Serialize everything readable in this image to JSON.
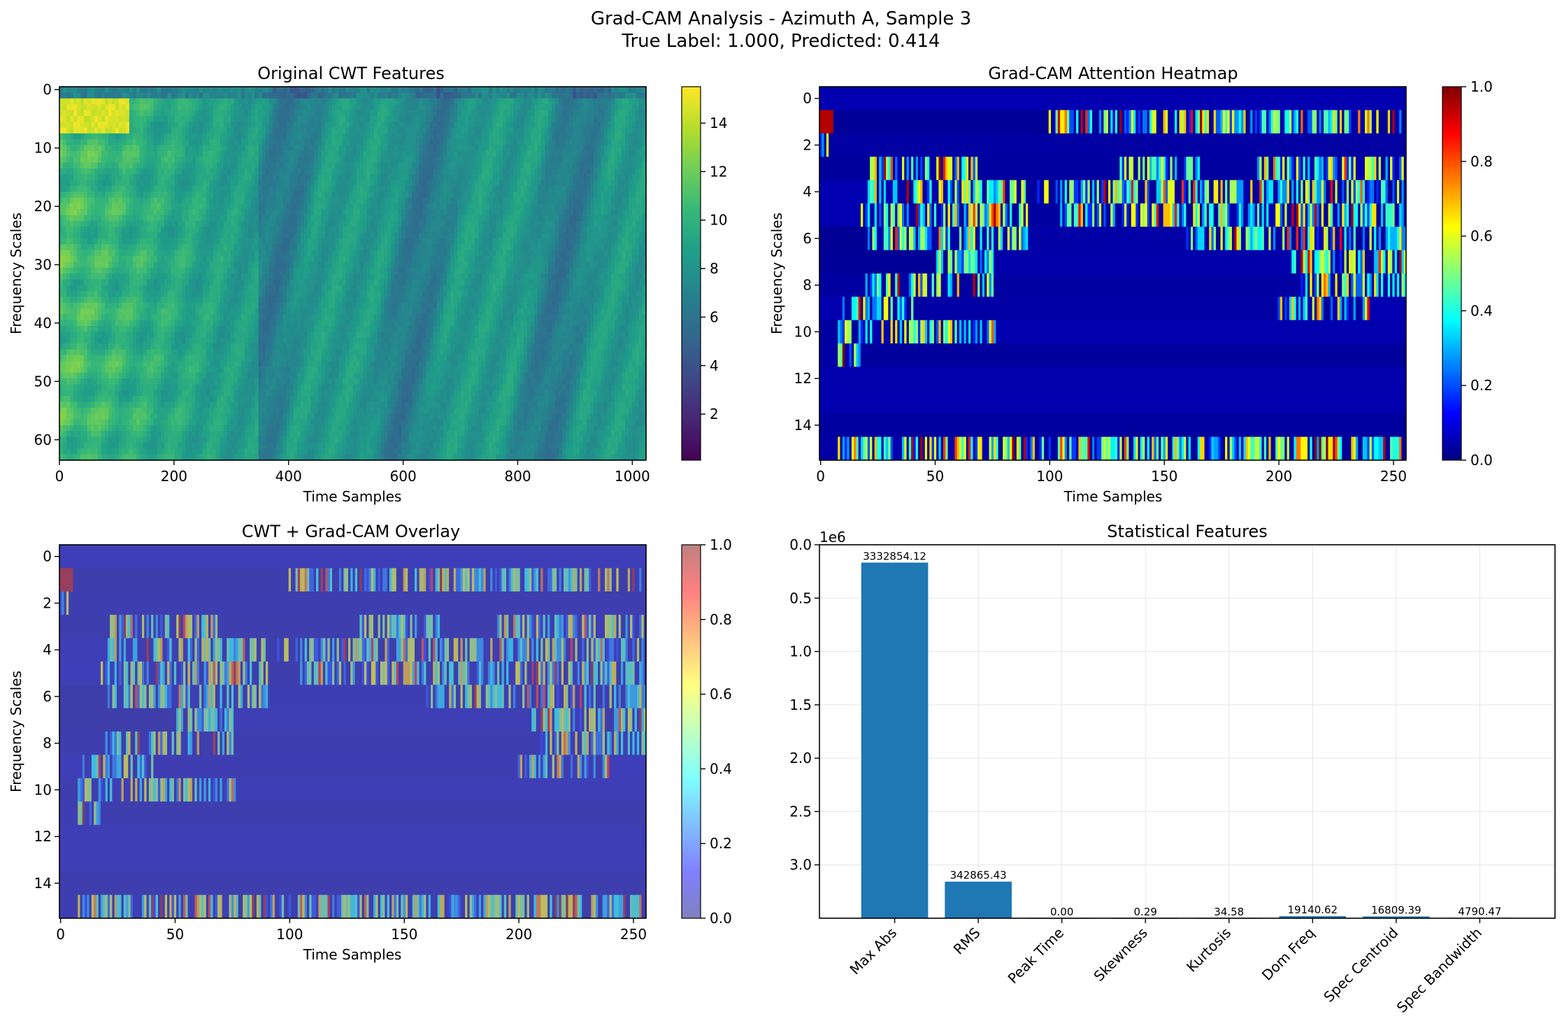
{
  "suptitle": {
    "line1": "Grad-CAM Analysis - Azimuth A, Sample 3",
    "line2": "True Label: 1.000, Predicted: 0.414"
  },
  "colors": {
    "viridis": [
      "#440154",
      "#482777",
      "#3e4989",
      "#31688e",
      "#26828e",
      "#1f9e89",
      "#35b779",
      "#6ece58",
      "#b5de2b",
      "#fde725"
    ],
    "jet": [
      "#00007f",
      "#0000ff",
      "#007fff",
      "#00ffff",
      "#7fff7f",
      "#ffff00",
      "#ff7f00",
      "#ff0000",
      "#7f0000"
    ],
    "bar": "#1f77b4",
    "overlay_base": "#7b7bbe"
  },
  "chart_data": [
    {
      "type": "heatmap",
      "title": "Original CWT Features",
      "xlabel": "Time Samples",
      "ylabel": "Frequency Scales",
      "xlim": [
        0,
        1024
      ],
      "ylim": [
        63.5,
        -0.5
      ],
      "x_ticks": [
        "0",
        "200",
        "400",
        "600",
        "800",
        "1000"
      ],
      "y_ticks": [
        "0",
        "10",
        "20",
        "30",
        "40",
        "50",
        "60"
      ],
      "colormap": "viridis",
      "colorbar": {
        "range": [
          0.1,
          15.5
        ],
        "ticks": [
          "2",
          "4",
          "6",
          "8",
          "10",
          "12",
          "14"
        ]
      },
      "grid": false,
      "features": {
        "bright_band_scales": [
          2,
          7
        ],
        "bright_band_time_range": [
          0,
          120
        ],
        "high_energy_time_range": [
          0,
          330
        ],
        "background_level": 8.5
      }
    },
    {
      "type": "heatmap",
      "title": "Grad-CAM Attention Heatmap",
      "xlabel": "Time Samples",
      "ylabel": "Frequency Scales",
      "xlim": [
        -0.5,
        255.5
      ],
      "ylim": [
        15.5,
        -0.5
      ],
      "x_ticks": [
        "0",
        "50",
        "100",
        "150",
        "200",
        "250"
      ],
      "y_ticks": [
        "0",
        "2",
        "4",
        "6",
        "8",
        "10",
        "12",
        "14"
      ],
      "colormap": "jet",
      "colorbar": {
        "range": [
          0.0,
          1.0
        ],
        "ticks": [
          "0.0",
          "0.2",
          "0.4",
          "0.6",
          "0.8",
          "1.0"
        ]
      },
      "grid": false,
      "active_regions": [
        {
          "row": 1,
          "time_ranges": [
            [
              0,
              5
            ],
            [
              100,
              255
            ]
          ]
        },
        {
          "row": 2,
          "time_ranges": [
            [
              0,
              3
            ]
          ]
        },
        {
          "row": 3,
          "time_ranges": [
            [
              20,
              68
            ],
            [
              130,
              165
            ],
            [
              190,
              255
            ]
          ]
        },
        {
          "row": 4,
          "time_ranges": [
            [
              20,
              90
            ],
            [
              95,
              255
            ]
          ]
        },
        {
          "row": 5,
          "time_ranges": [
            [
              18,
              90
            ],
            [
              105,
              255
            ]
          ]
        },
        {
          "row": 6,
          "time_ranges": [
            [
              20,
              90
            ],
            [
              160,
              255
            ]
          ]
        },
        {
          "row": 7,
          "time_ranges": [
            [
              50,
              75
            ],
            [
              205,
              255
            ]
          ]
        },
        {
          "row": 8,
          "time_ranges": [
            [
              20,
              75
            ],
            [
              210,
              255
            ]
          ]
        },
        {
          "row": 9,
          "time_ranges": [
            [
              10,
              40
            ],
            [
              200,
              240
            ]
          ]
        },
        {
          "row": 10,
          "time_ranges": [
            [
              8,
              85
            ]
          ]
        },
        {
          "row": 11,
          "time_ranges": [
            [
              8,
              20
            ]
          ]
        },
        {
          "row": 15,
          "time_ranges": [
            [
              8,
              255
            ]
          ]
        }
      ]
    },
    {
      "type": "heatmap",
      "title": "CWT + Grad-CAM Overlay",
      "xlabel": "Time Samples",
      "ylabel": "Frequency Scales",
      "xlim": [
        -0.5,
        255.5
      ],
      "ylim": [
        15.5,
        -0.5
      ],
      "x_ticks": [
        "0",
        "50",
        "100",
        "150",
        "200",
        "250"
      ],
      "y_ticks": [
        "0",
        "2",
        "4",
        "6",
        "8",
        "10",
        "12",
        "14"
      ],
      "colormap": "jet",
      "overlay_alpha": 0.5,
      "colorbar": {
        "range": [
          0.0,
          1.0
        ],
        "ticks": [
          "0.0",
          "0.2",
          "0.4",
          "0.6",
          "0.8",
          "1.0"
        ]
      },
      "grid": false
    },
    {
      "type": "bar",
      "title": "Statistical Features",
      "categories": [
        "Max Abs",
        "RMS",
        "Peak Time",
        "Skewness",
        "Kurtosis",
        "Dom Freq",
        "Spec Centroid",
        "Spec Bandwidth"
      ],
      "values": [
        3332854.12,
        342865.43,
        0.0,
        0.29,
        34.58,
        19140.62,
        16809.39,
        4790.47
      ],
      "value_labels": [
        "3332854.12",
        "342865.43",
        "0.00",
        "0.29",
        "34.58",
        "19140.62",
        "16809.39",
        "4790.47"
      ],
      "ylim": [
        0,
        3500000
      ],
      "y_ticks": [
        "0.0",
        "0.5",
        "1.0",
        "1.5",
        "2.0",
        "2.5",
        "3.0"
      ],
      "y_offset_label": "1e6",
      "xlabel": "",
      "ylabel": "",
      "grid": true
    }
  ]
}
